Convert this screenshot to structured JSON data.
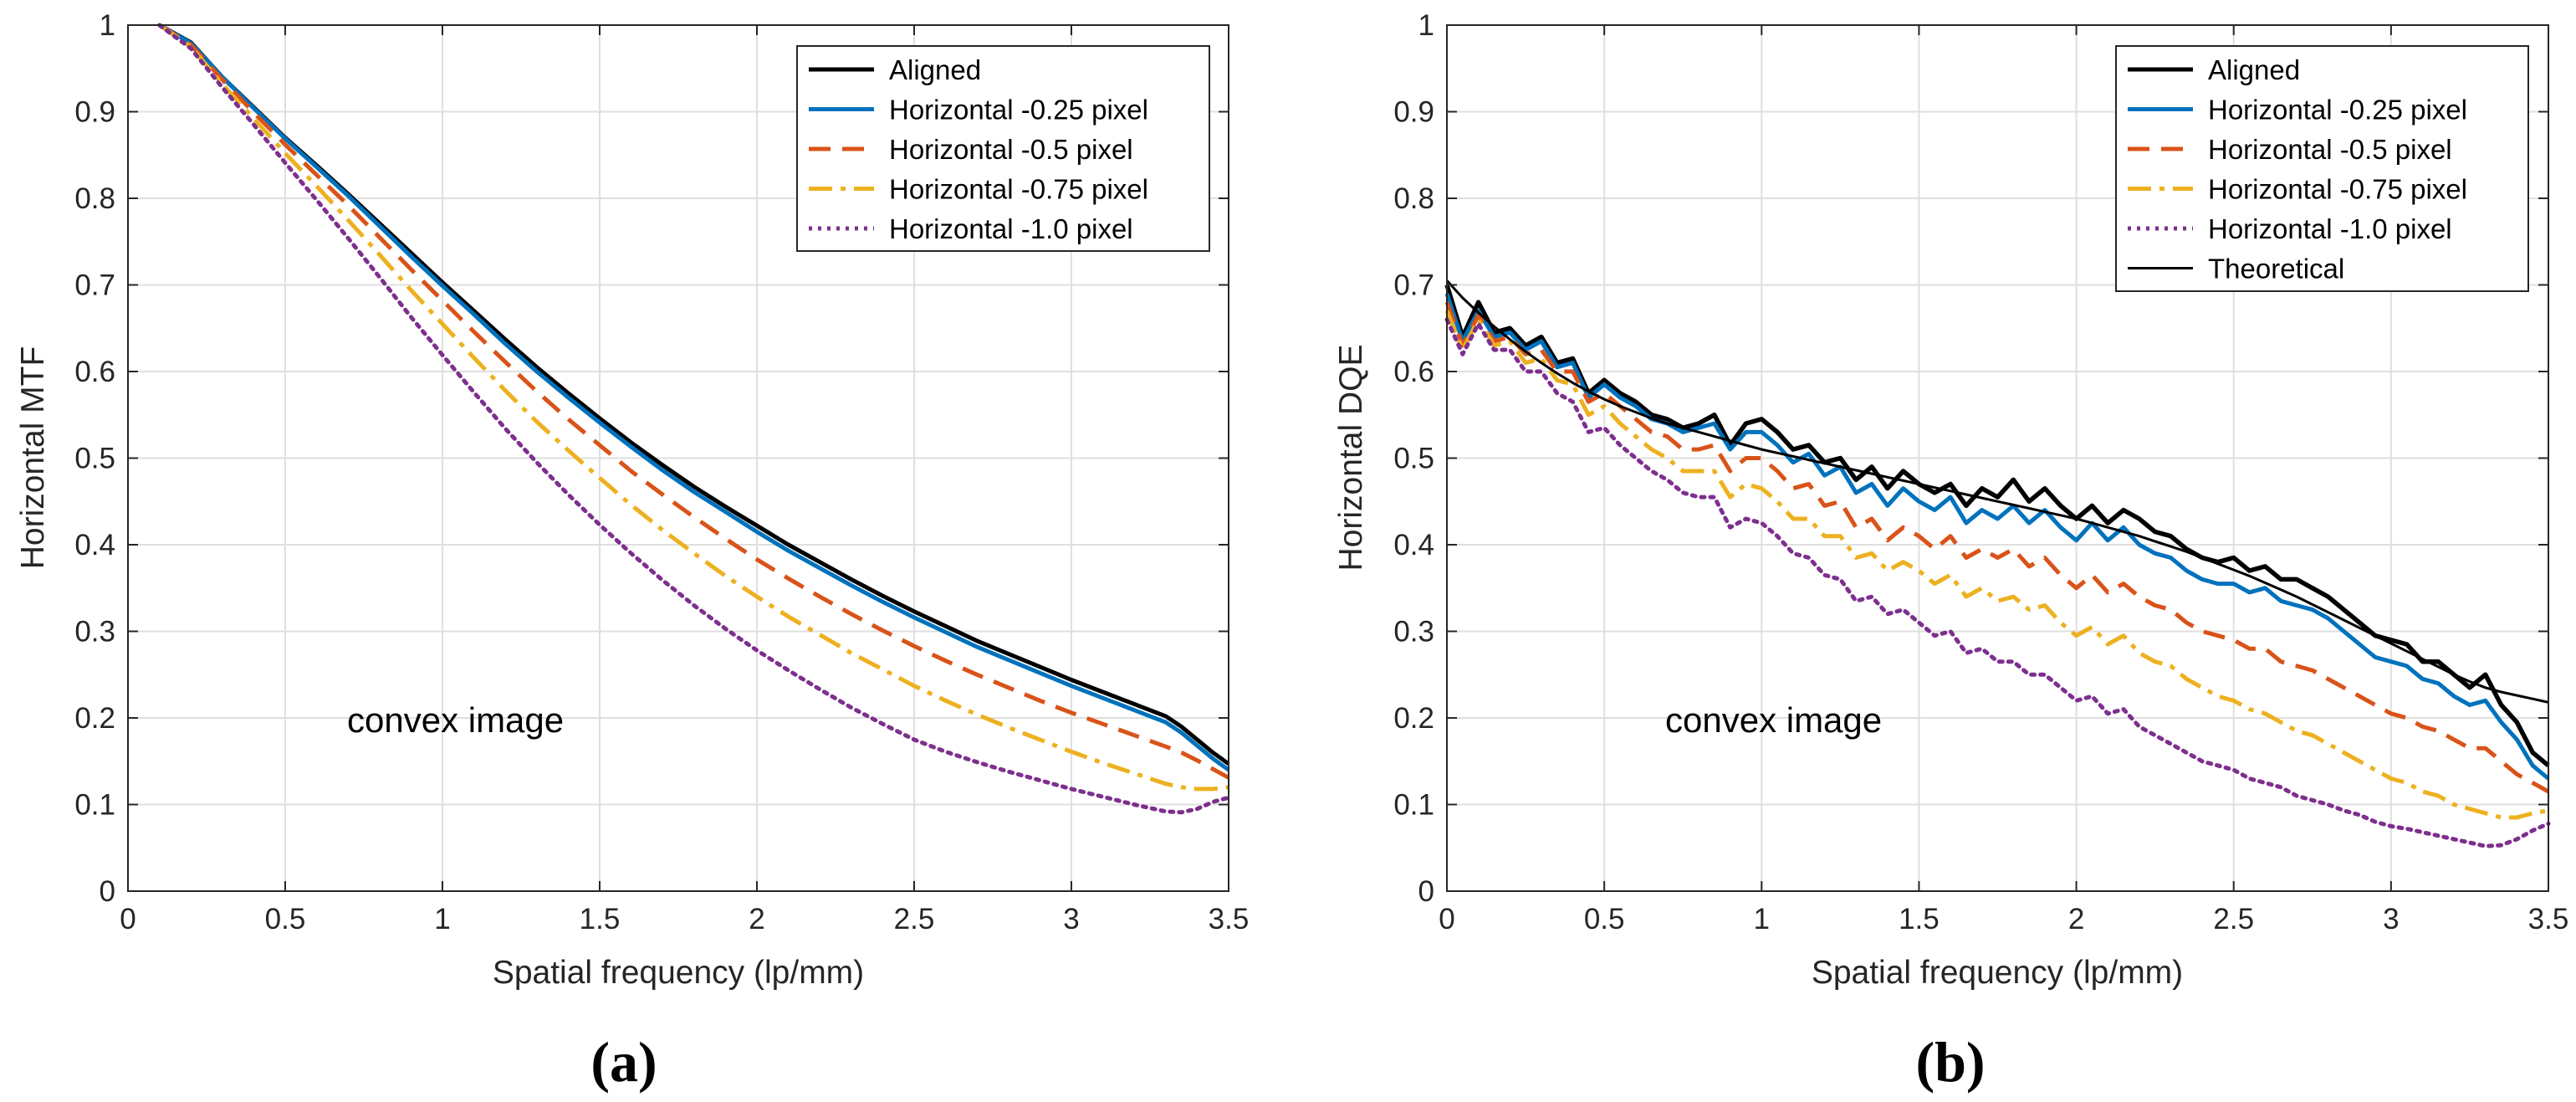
{
  "chart_data": [
    {
      "type": "line",
      "panel_label": "(a)",
      "ylabel": "Horizontal MTF",
      "xlabel": "Spatial frequency (lp/mm)",
      "xlim": [
        0,
        3.5
      ],
      "ylim": [
        0,
        1
      ],
      "xticks": [
        "0",
        "0.5",
        "1",
        "1.5",
        "2",
        "2.5",
        "3",
        "3.5"
      ],
      "yticks": [
        "0",
        "0.1",
        "0.2",
        "0.3",
        "0.4",
        "0.5",
        "0.6",
        "0.7",
        "0.8",
        "0.9",
        "1"
      ],
      "grid": true,
      "legend_position": "top-right",
      "annotation": "convex image",
      "x": [
        0.1,
        0.2,
        0.3,
        0.4,
        0.5,
        0.6,
        0.7,
        0.8,
        0.9,
        1.0,
        1.1,
        1.2,
        1.3,
        1.4,
        1.5,
        1.6,
        1.7,
        1.8,
        1.9,
        2.0,
        2.1,
        2.2,
        2.3,
        2.4,
        2.5,
        2.6,
        2.7,
        2.8,
        2.9,
        3.0,
        3.1,
        3.2,
        3.3,
        3.35,
        3.4,
        3.45,
        3.5
      ],
      "series": [
        {
          "name": "Aligned",
          "color": "#000000",
          "dash": "solid",
          "values": [
            1.0,
            0.98,
            0.94,
            0.905,
            0.87,
            0.838,
            0.805,
            0.771,
            0.737,
            0.703,
            0.67,
            0.637,
            0.605,
            0.575,
            0.546,
            0.518,
            0.492,
            0.467,
            0.444,
            0.422,
            0.4,
            0.38,
            0.36,
            0.341,
            0.323,
            0.306,
            0.289,
            0.274,
            0.259,
            0.244,
            0.23,
            0.216,
            0.202,
            0.19,
            0.175,
            0.16,
            0.147
          ]
        },
        {
          "name": "Horizontal -0.25 pixel",
          "color": "#0072BD",
          "dash": "solid",
          "values": [
            1.0,
            0.979,
            0.94,
            0.904,
            0.869,
            0.836,
            0.803,
            0.768,
            0.733,
            0.699,
            0.666,
            0.632,
            0.6,
            0.57,
            0.541,
            0.513,
            0.486,
            0.461,
            0.438,
            0.415,
            0.393,
            0.373,
            0.353,
            0.334,
            0.316,
            0.299,
            0.282,
            0.267,
            0.252,
            0.237,
            0.223,
            0.209,
            0.195,
            0.183,
            0.168,
            0.153,
            0.14
          ]
        },
        {
          "name": "Horizontal -0.5 pixel",
          "color": "#D95319",
          "dash": "dashed",
          "values": [
            1.0,
            0.977,
            0.937,
            0.899,
            0.862,
            0.827,
            0.792,
            0.755,
            0.718,
            0.682,
            0.646,
            0.611,
            0.577,
            0.545,
            0.515,
            0.485,
            0.458,
            0.432,
            0.407,
            0.383,
            0.361,
            0.34,
            0.32,
            0.301,
            0.283,
            0.266,
            0.25,
            0.235,
            0.22,
            0.206,
            0.193,
            0.18,
            0.167,
            0.16,
            0.151,
            0.141,
            0.131
          ]
        },
        {
          "name": "Horizontal -0.75 pixel",
          "color": "#EDB120",
          "dash": "dashdot",
          "values": [
            1.0,
            0.975,
            0.932,
            0.892,
            0.852,
            0.814,
            0.775,
            0.735,
            0.694,
            0.655,
            0.616,
            0.578,
            0.542,
            0.509,
            0.477,
            0.446,
            0.417,
            0.39,
            0.364,
            0.34,
            0.317,
            0.296,
            0.275,
            0.256,
            0.237,
            0.22,
            0.204,
            0.189,
            0.175,
            0.161,
            0.148,
            0.136,
            0.124,
            0.12,
            0.118,
            0.118,
            0.12
          ]
        },
        {
          "name": "Horizontal -1.0 pixel",
          "color": "#7E2F8E",
          "dash": "dotted",
          "values": [
            1.0,
            0.973,
            0.928,
            0.885,
            0.841,
            0.798,
            0.754,
            0.709,
            0.663,
            0.619,
            0.576,
            0.534,
            0.495,
            0.458,
            0.423,
            0.39,
            0.359,
            0.33,
            0.303,
            0.278,
            0.255,
            0.233,
            0.212,
            0.193,
            0.175,
            0.161,
            0.149,
            0.138,
            0.128,
            0.118,
            0.109,
            0.1,
            0.092,
            0.091,
            0.095,
            0.103,
            0.108
          ]
        }
      ]
    },
    {
      "type": "line",
      "panel_label": "(b)",
      "ylabel": "Horizontal DQE",
      "xlabel": "Spatial frequency (lp/mm)",
      "xlim": [
        0,
        3.5
      ],
      "ylim": [
        0,
        1
      ],
      "xticks": [
        "0",
        "0.5",
        "1",
        "1.5",
        "2",
        "2.5",
        "3",
        "3.5"
      ],
      "yticks": [
        "0",
        "0.1",
        "0.2",
        "0.3",
        "0.4",
        "0.5",
        "0.6",
        "0.7",
        "0.8",
        "0.9",
        "1"
      ],
      "grid": true,
      "legend_position": "top-right",
      "annotation": "convex image",
      "x": [
        0.0,
        0.05,
        0.1,
        0.15,
        0.2,
        0.25,
        0.3,
        0.35,
        0.4,
        0.45,
        0.5,
        0.55,
        0.6,
        0.65,
        0.7,
        0.75,
        0.8,
        0.85,
        0.9,
        0.95,
        1.0,
        1.05,
        1.1,
        1.15,
        1.2,
        1.25,
        1.3,
        1.35,
        1.4,
        1.45,
        1.5,
        1.55,
        1.6,
        1.65,
        1.7,
        1.75,
        1.8,
        1.85,
        1.9,
        1.95,
        2.0,
        2.05,
        2.1,
        2.15,
        2.2,
        2.25,
        2.3,
        2.35,
        2.4,
        2.45,
        2.5,
        2.55,
        2.6,
        2.65,
        2.7,
        2.75,
        2.8,
        2.85,
        2.9,
        2.95,
        3.0,
        3.05,
        3.1,
        3.15,
        3.2,
        3.25,
        3.3,
        3.35,
        3.4,
        3.45,
        3.5
      ],
      "series": [
        {
          "name": "Aligned",
          "color": "#000000",
          "dash": "solid",
          "width": "thick",
          "values": [
            0.7,
            0.64,
            0.68,
            0.645,
            0.65,
            0.63,
            0.64,
            0.61,
            0.615,
            0.575,
            0.59,
            0.575,
            0.565,
            0.55,
            0.545,
            0.535,
            0.54,
            0.55,
            0.515,
            0.54,
            0.545,
            0.53,
            0.51,
            0.515,
            0.495,
            0.5,
            0.475,
            0.49,
            0.465,
            0.485,
            0.47,
            0.46,
            0.47,
            0.445,
            0.465,
            0.455,
            0.475,
            0.45,
            0.465,
            0.445,
            0.43,
            0.445,
            0.425,
            0.44,
            0.43,
            0.415,
            0.41,
            0.395,
            0.385,
            0.38,
            0.385,
            0.37,
            0.375,
            0.36,
            0.36,
            0.35,
            0.34,
            0.325,
            0.31,
            0.295,
            0.29,
            0.285,
            0.265,
            0.265,
            0.25,
            0.235,
            0.25,
            0.215,
            0.195,
            0.16,
            0.145
          ]
        },
        {
          "name": "Horizontal -0.25 pixel",
          "color": "#0072BD",
          "dash": "solid",
          "values": [
            0.69,
            0.635,
            0.67,
            0.64,
            0.645,
            0.625,
            0.635,
            0.605,
            0.61,
            0.57,
            0.585,
            0.57,
            0.56,
            0.545,
            0.54,
            0.53,
            0.535,
            0.54,
            0.51,
            0.53,
            0.53,
            0.515,
            0.495,
            0.505,
            0.48,
            0.49,
            0.46,
            0.47,
            0.445,
            0.465,
            0.45,
            0.44,
            0.455,
            0.425,
            0.44,
            0.43,
            0.445,
            0.425,
            0.44,
            0.42,
            0.405,
            0.425,
            0.405,
            0.42,
            0.4,
            0.39,
            0.385,
            0.37,
            0.36,
            0.355,
            0.355,
            0.345,
            0.35,
            0.335,
            0.33,
            0.325,
            0.315,
            0.3,
            0.285,
            0.27,
            0.265,
            0.26,
            0.245,
            0.24,
            0.225,
            0.215,
            0.22,
            0.195,
            0.175,
            0.145,
            0.13
          ]
        },
        {
          "name": "Horizontal -0.5 pixel",
          "color": "#D95319",
          "dash": "dashed",
          "values": [
            0.68,
            0.63,
            0.665,
            0.635,
            0.64,
            0.62,
            0.625,
            0.6,
            0.6,
            0.565,
            0.575,
            0.56,
            0.545,
            0.53,
            0.525,
            0.51,
            0.51,
            0.515,
            0.485,
            0.5,
            0.5,
            0.485,
            0.465,
            0.47,
            0.445,
            0.45,
            0.42,
            0.43,
            0.405,
            0.42,
            0.41,
            0.395,
            0.41,
            0.385,
            0.395,
            0.385,
            0.395,
            0.375,
            0.385,
            0.365,
            0.35,
            0.365,
            0.345,
            0.355,
            0.34,
            0.33,
            0.325,
            0.31,
            0.3,
            0.295,
            0.29,
            0.28,
            0.28,
            0.265,
            0.26,
            0.255,
            0.245,
            0.235,
            0.225,
            0.215,
            0.205,
            0.2,
            0.19,
            0.185,
            0.175,
            0.165,
            0.165,
            0.15,
            0.135,
            0.125,
            0.115
          ]
        },
        {
          "name": "Horizontal -0.75 pixel",
          "color": "#EDB120",
          "dash": "dashdot",
          "values": [
            0.67,
            0.625,
            0.66,
            0.63,
            0.635,
            0.61,
            0.615,
            0.59,
            0.585,
            0.55,
            0.56,
            0.54,
            0.525,
            0.51,
            0.5,
            0.485,
            0.485,
            0.485,
            0.455,
            0.47,
            0.465,
            0.45,
            0.43,
            0.43,
            0.41,
            0.41,
            0.385,
            0.39,
            0.37,
            0.38,
            0.37,
            0.355,
            0.365,
            0.34,
            0.35,
            0.335,
            0.34,
            0.325,
            0.33,
            0.31,
            0.295,
            0.305,
            0.285,
            0.295,
            0.275,
            0.265,
            0.26,
            0.245,
            0.235,
            0.225,
            0.22,
            0.21,
            0.205,
            0.195,
            0.185,
            0.18,
            0.17,
            0.16,
            0.15,
            0.14,
            0.13,
            0.125,
            0.115,
            0.11,
            0.1,
            0.095,
            0.09,
            0.085,
            0.085,
            0.09,
            0.093
          ]
        },
        {
          "name": "Horizontal -1.0 pixel",
          "color": "#7E2F8E",
          "dash": "dotted",
          "values": [
            0.66,
            0.62,
            0.655,
            0.625,
            0.625,
            0.6,
            0.6,
            0.575,
            0.565,
            0.53,
            0.535,
            0.515,
            0.5,
            0.485,
            0.475,
            0.46,
            0.455,
            0.455,
            0.42,
            0.43,
            0.425,
            0.41,
            0.39,
            0.385,
            0.365,
            0.36,
            0.335,
            0.34,
            0.32,
            0.325,
            0.31,
            0.295,
            0.3,
            0.275,
            0.28,
            0.265,
            0.265,
            0.25,
            0.25,
            0.235,
            0.22,
            0.225,
            0.205,
            0.21,
            0.19,
            0.18,
            0.17,
            0.16,
            0.15,
            0.145,
            0.14,
            0.13,
            0.125,
            0.12,
            0.11,
            0.105,
            0.1,
            0.093,
            0.088,
            0.08,
            0.075,
            0.072,
            0.068,
            0.064,
            0.06,
            0.056,
            0.052,
            0.053,
            0.06,
            0.07,
            0.078
          ]
        },
        {
          "name": "Theoretical",
          "color": "#000000",
          "dash": "solid",
          "width": "thin",
          "values": [
            0.705,
            0.685,
            0.668,
            0.652,
            0.637,
            0.623,
            0.61,
            0.598,
            0.587,
            0.577,
            0.568,
            0.56,
            0.553,
            0.546,
            0.54,
            0.535,
            0.53,
            0.525,
            0.52,
            0.515,
            0.51,
            0.506,
            0.502,
            0.498,
            0.494,
            0.49,
            0.486,
            0.482,
            0.478,
            0.474,
            0.47,
            0.466,
            0.462,
            0.458,
            0.454,
            0.45,
            0.446,
            0.442,
            0.438,
            0.434,
            0.43,
            0.425,
            0.42,
            0.415,
            0.41,
            0.404,
            0.398,
            0.392,
            0.385,
            0.378,
            0.371,
            0.364,
            0.356,
            0.348,
            0.34,
            0.331,
            0.322,
            0.313,
            0.304,
            0.295,
            0.286,
            0.277,
            0.268,
            0.259,
            0.25,
            0.242,
            0.235,
            0.23,
            0.226,
            0.222,
            0.218
          ]
        }
      ]
    }
  ]
}
